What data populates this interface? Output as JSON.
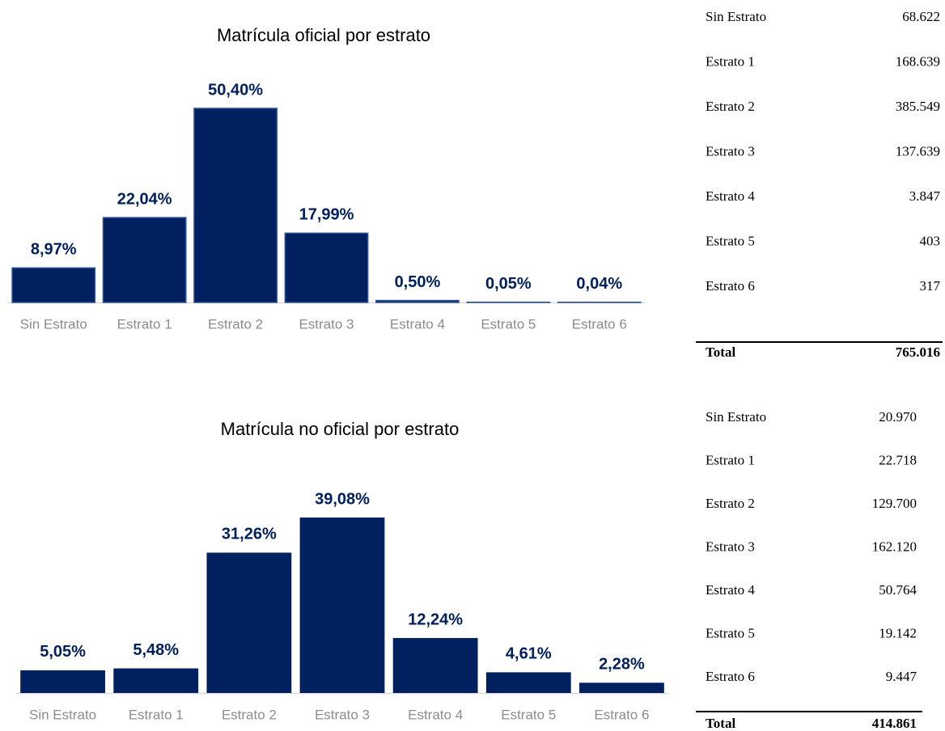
{
  "chart_data": [
    {
      "type": "bar",
      "title": "Matrícula oficial por estrato",
      "categories": [
        "Sin Estrato",
        "Estrato 1",
        "Estrato 2",
        "Estrato 3",
        "Estrato 4",
        "Estrato 5",
        "Estrato 6"
      ],
      "values": [
        8.97,
        22.04,
        50.4,
        17.99,
        0.5,
        0.05,
        0.04
      ],
      "value_labels": [
        "8,97%",
        "22,04%",
        "50,40%",
        "17,99%",
        "0,50%",
        "0,05%",
        "0,04%"
      ],
      "color": "#002060"
    },
    {
      "type": "bar",
      "title": "Matrícula no oficial por estrato",
      "categories": [
        "Sin Estrato",
        "Estrato 1",
        "Estrato 2",
        "Estrato 3",
        "Estrato 4",
        "Estrato 5",
        "Estrato 6"
      ],
      "values": [
        5.05,
        5.48,
        31.26,
        39.08,
        12.24,
        4.61,
        2.28
      ],
      "value_labels": [
        "5,05%",
        "5,48%",
        "31,26%",
        "39,08%",
        "12,24%",
        "4,61%",
        "2,28%"
      ],
      "color": "#002060"
    }
  ],
  "tables": [
    {
      "rows": [
        [
          "Sin Estrato",
          "68.622"
        ],
        [
          "Estrato 1",
          "168.639"
        ],
        [
          "Estrato 2",
          "385.549"
        ],
        [
          "Estrato 3",
          "137.639"
        ],
        [
          "Estrato 4",
          "3.847"
        ],
        [
          "Estrato 5",
          "403"
        ],
        [
          "Estrato 6",
          "317"
        ]
      ],
      "total": [
        "Total",
        "765.016"
      ]
    },
    {
      "rows": [
        [
          "Sin Estrato",
          "20.970"
        ],
        [
          "Estrato 1",
          "22.718"
        ],
        [
          "Estrato 2",
          "129.700"
        ],
        [
          "Estrato 3",
          "162.120"
        ],
        [
          "Estrato 4",
          "50.764"
        ],
        [
          "Estrato 5",
          "19.142"
        ],
        [
          "Estrato 6",
          "9.447"
        ]
      ],
      "total": [
        "Total",
        "414.861"
      ]
    }
  ]
}
